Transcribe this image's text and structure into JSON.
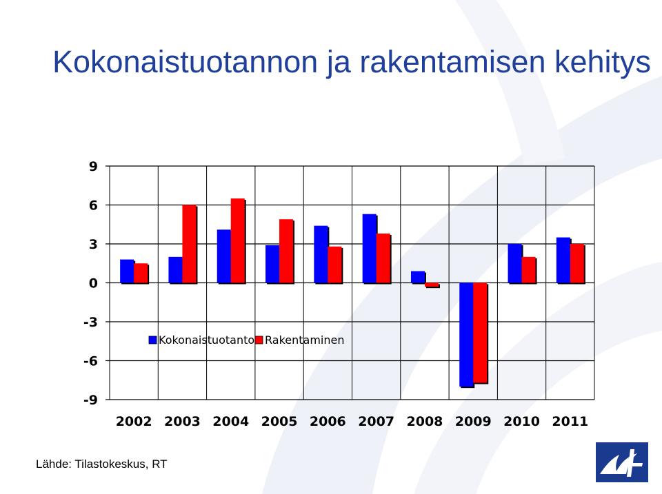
{
  "slide": {
    "title": "Kokonaistuotannon ja rakentamisen kehitys",
    "source": "Lähde: Tilastokeskus, RT"
  },
  "colors": {
    "title": "#1f3f9a",
    "logo_bg": "#1a3a8f",
    "series": [
      "#0000ff",
      "#ff0000"
    ]
  },
  "icons": {
    "logo": "rt-logo-icon",
    "background": "rt-watermark-icon"
  },
  "chart_data": {
    "type": "bar",
    "title": "",
    "xlabel": "",
    "ylabel": "",
    "categories": [
      "2002",
      "2003",
      "2004",
      "2005",
      "2006",
      "2007",
      "2008",
      "2009",
      "2010",
      "2011"
    ],
    "series": [
      {
        "name": "Kokonaistuotanto",
        "color": "#0000ff",
        "values": [
          1.8,
          2.0,
          4.1,
          2.9,
          4.4,
          5.3,
          0.9,
          -8.0,
          3.0,
          3.5
        ]
      },
      {
        "name": "Rakentaminen",
        "color": "#ff0000",
        "values": [
          1.5,
          6.0,
          6.5,
          4.9,
          2.8,
          3.8,
          -0.3,
          -7.7,
          2.0,
          3.0
        ]
      }
    ],
    "ylim": [
      -9,
      9
    ],
    "yticks": [
      "9",
      "6",
      "3",
      "0",
      "-3",
      "-6",
      "-9"
    ],
    "ytick_values": [
      9,
      6,
      3,
      0,
      -3,
      -6,
      -9
    ],
    "grid": {
      "horizontal": true,
      "vertical": true
    },
    "legend_position": "lower-left-inside"
  }
}
